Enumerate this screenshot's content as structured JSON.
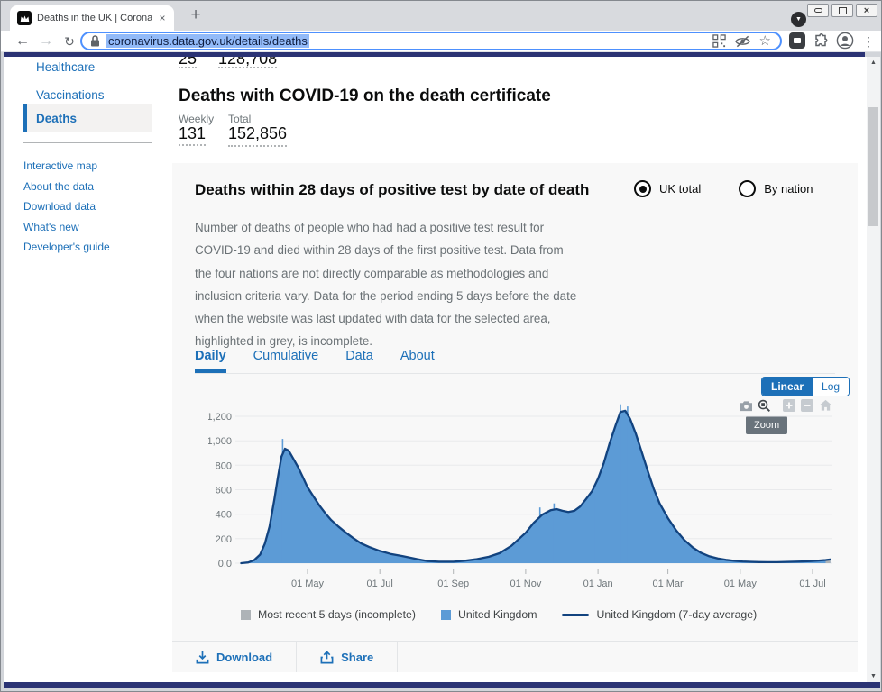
{
  "colors": {
    "accent": "#1d70b8",
    "chart_fill": "#5c9bd6",
    "chart_line": "#12437f",
    "incomplete_grey": "#aeb3b7",
    "navy_strip": "#2b3374"
  },
  "browser": {
    "tab_title": "Deaths in the UK | Coronavirus in th",
    "url": "coronavirus.data.gov.uk/details/deaths",
    "icons": {
      "back": "←",
      "forward": "→",
      "reload": "↻",
      "star": "☆",
      "menu": "⋮",
      "new_tab": "+",
      "tab_close": "×",
      "tab_search_arrow": "▼",
      "window_close": "×",
      "scroll_up": "▲",
      "scroll_down": "▼"
    }
  },
  "sidebar": {
    "primary": [
      {
        "label": "Healthcare",
        "active": false
      },
      {
        "label": "Vaccinations",
        "active": false
      },
      {
        "label": "Deaths",
        "active": true
      }
    ],
    "secondary": [
      "Interactive map",
      "About the data",
      "Download data",
      "What's new",
      "Developer's guide"
    ]
  },
  "page": {
    "partial_metric": {
      "weekly": "25",
      "total": "128,708"
    },
    "certificate": {
      "title": "Deaths with COVID-19 on the death certificate",
      "weekly_label": "Weekly",
      "total_label": "Total",
      "weekly_value": "131",
      "total_value": "152,856"
    }
  },
  "card": {
    "title": "Deaths within 28 days of positive test by date of death",
    "radios": [
      {
        "label": "UK total",
        "selected": true
      },
      {
        "label": "By nation",
        "selected": false
      }
    ],
    "description": "Number of deaths of people who had had a positive test result for COVID-19 and died within 28 days of the first positive test. Data from the four nations are not directly comparable as methodologies and inclusion criteria vary. Data for the period ending 5 days before the date when the website was last updated with data for the selected area, highlighted in grey, is incomplete.",
    "tabs": [
      {
        "label": "Daily",
        "active": true
      },
      {
        "label": "Cumulative",
        "active": false
      },
      {
        "label": "Data",
        "active": false
      },
      {
        "label": "About",
        "active": false
      }
    ],
    "scale_toggle": {
      "linear": "Linear",
      "log": "Log",
      "active": "Linear"
    },
    "zoom_tooltip": "Zoom",
    "legend": [
      {
        "label": "Most recent 5 days (incomplete)",
        "swatch": "square",
        "color": "#aeb3b7"
      },
      {
        "label": "United Kingdom",
        "swatch": "square",
        "color": "#5c9bd6"
      },
      {
        "label": "United Kingdom (7-day average)",
        "swatch": "line",
        "color": "#12437f"
      }
    ],
    "download_label": "Download",
    "share_label": "Share"
  },
  "chart_data": {
    "type": "area",
    "title": "Deaths within 28 days of positive test by date of death (Daily, UK total)",
    "xlabel": "",
    "ylabel": "",
    "ylim": [
      0,
      1300
    ],
    "grid": true,
    "y_ticks": [
      "0.0",
      "200",
      "400",
      "600",
      "800",
      "1,000",
      "1,200"
    ],
    "y_tick_values": [
      0,
      200,
      400,
      600,
      800,
      1000,
      1200
    ],
    "x_ticks": [
      {
        "label": "01 May",
        "date": "2020-05-01"
      },
      {
        "label": "01 Jul",
        "date": "2020-07-01"
      },
      {
        "label": "01 Sep",
        "date": "2020-09-01"
      },
      {
        "label": "01 Nov",
        "date": "2020-11-01"
      },
      {
        "label": "01 Jan",
        "date": "2021-01-01"
      },
      {
        "label": "01 Mar",
        "date": "2021-03-01"
      },
      {
        "label": "01 May",
        "date": "2021-05-01"
      },
      {
        "label": "01 Jul",
        "date": "2021-07-01"
      }
    ],
    "series_name": "United Kingdom (7-day average)",
    "x": [
      "2020-03-06",
      "2020-03-12",
      "2020-03-17",
      "2020-03-22",
      "2020-03-26",
      "2020-03-30",
      "2020-04-03",
      "2020-04-06",
      "2020-04-09",
      "2020-04-12",
      "2020-04-15",
      "2020-04-19",
      "2020-04-23",
      "2020-04-27",
      "2020-05-01",
      "2020-05-06",
      "2020-05-11",
      "2020-05-16",
      "2020-05-21",
      "2020-05-27",
      "2020-06-02",
      "2020-06-08",
      "2020-06-15",
      "2020-06-22",
      "2020-07-01",
      "2020-07-10",
      "2020-07-20",
      "2020-08-01",
      "2020-08-10",
      "2020-08-20",
      "2020-09-01",
      "2020-09-10",
      "2020-09-20",
      "2020-10-01",
      "2020-10-10",
      "2020-10-20",
      "2020-11-01",
      "2020-11-08",
      "2020-11-15",
      "2020-11-22",
      "2020-11-27",
      "2020-12-02",
      "2020-12-07",
      "2020-12-12",
      "2020-12-17",
      "2020-12-22",
      "2020-12-27",
      "2021-01-01",
      "2021-01-06",
      "2021-01-11",
      "2021-01-16",
      "2021-01-20",
      "2021-01-24",
      "2021-01-28",
      "2021-02-02",
      "2021-02-07",
      "2021-02-12",
      "2021-02-17",
      "2021-02-22",
      "2021-03-01",
      "2021-03-08",
      "2021-03-15",
      "2021-03-22",
      "2021-03-29",
      "2021-04-05",
      "2021-04-12",
      "2021-04-19",
      "2021-04-26",
      "2021-05-03",
      "2021-05-10",
      "2021-05-17",
      "2021-05-24",
      "2021-06-01",
      "2021-06-08",
      "2021-06-15",
      "2021-06-22",
      "2021-06-29",
      "2021-07-06",
      "2021-07-12",
      "2021-07-16"
    ],
    "y": [
      0,
      6,
      25,
      70,
      160,
      300,
      520,
      700,
      870,
      935,
      920,
      855,
      785,
      705,
      620,
      545,
      472,
      408,
      352,
      300,
      252,
      208,
      163,
      132,
      100,
      76,
      58,
      34,
      18,
      12,
      12,
      19,
      32,
      52,
      82,
      142,
      248,
      332,
      396,
      432,
      442,
      428,
      418,
      428,
      462,
      524,
      588,
      690,
      820,
      985,
      1130,
      1235,
      1245,
      1180,
      1056,
      905,
      752,
      608,
      488,
      368,
      268,
      188,
      128,
      84,
      56,
      38,
      27,
      19,
      14,
      11,
      9,
      8,
      8,
      10,
      12,
      14,
      17,
      21,
      26,
      30
    ],
    "spikes": [
      {
        "date": "2020-04-10",
        "top": 1015
      },
      {
        "date": "2020-11-13",
        "top": 455
      },
      {
        "date": "2020-11-25",
        "top": 488
      },
      {
        "date": "2020-12-30",
        "top": 652
      },
      {
        "date": "2021-01-20",
        "top": 1298
      },
      {
        "date": "2021-01-26",
        "top": 1280
      }
    ],
    "incomplete_from": "2021-07-12",
    "fill_color": "#5c9bd6",
    "line_color": "#12437f",
    "incomplete_color": "#aeb3b7",
    "legend_position": "bottom"
  }
}
